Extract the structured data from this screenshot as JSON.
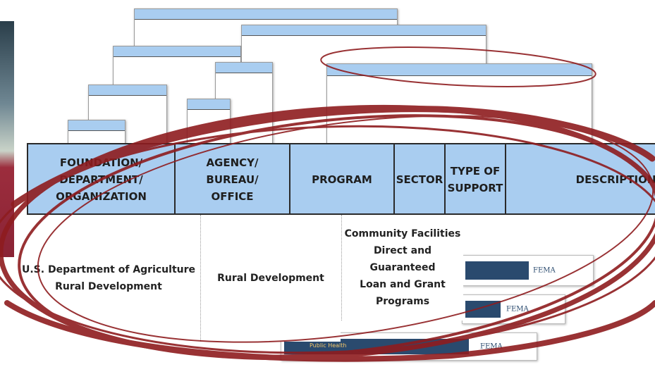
{
  "table": {
    "header": [
      [
        "FOUNDATION/",
        "DEPARTMENT/",
        "ORGANIZATION"
      ],
      [
        "AGENCY/",
        "BUREAU/",
        "OFFICE"
      ],
      [
        "PROGRAM"
      ],
      [
        "SECTOR"
      ],
      [
        "TYPE OF",
        "SUPPORT"
      ],
      [
        "DESCRIPTION"
      ]
    ],
    "rows": [
      [
        [
          "U.S. Department of Agriculture",
          "Rural Development"
        ],
        [
          "Rural Development"
        ],
        [
          "Community Facilities",
          "Direct and Guaranteed",
          "Loan and Grant",
          "Programs"
        ]
      ]
    ]
  },
  "banners": [
    {
      "logo": "FEMA"
    },
    {
      "logo": "FEMA"
    },
    {
      "logo": "FEMA",
      "tag": "Public Health"
    }
  ]
}
